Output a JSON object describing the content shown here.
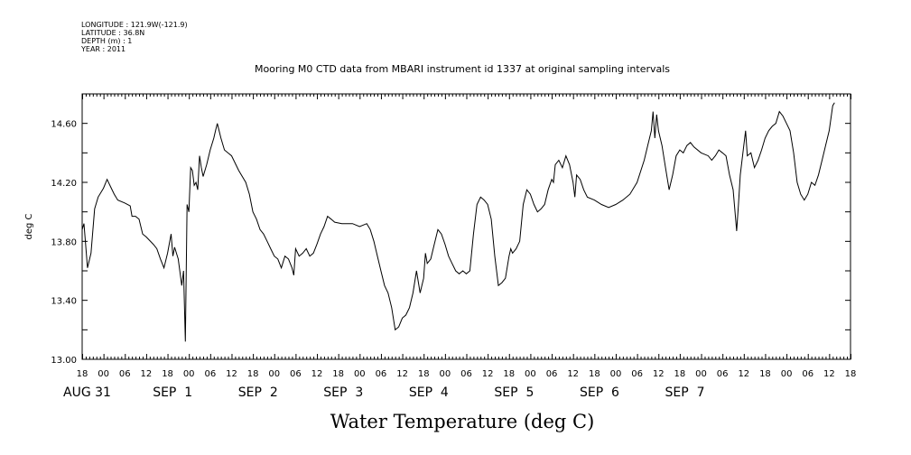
{
  "metadata": {
    "longitude": "LONGITUDE : 121.9W(-121.9)",
    "latitude": "LATITUDE : 36.8N",
    "depth": "DEPTH (m) : 1",
    "year": "YEAR : 2011"
  },
  "chart_data": {
    "type": "line",
    "title": "Mooring M0 CTD data from MBARI instrument id 1337 at original sampling intervals",
    "xlabel": "Water Temperature (deg C)",
    "ylabel": "deg C",
    "ylim": [
      13.0,
      14.8
    ],
    "yticks": [
      "13.00",
      "13.40",
      "13.80",
      "14.20",
      "14.60"
    ],
    "xlim_hours": [
      -6,
      210
    ],
    "xtick_labels": [
      "18",
      "00",
      "06",
      "12",
      "18",
      "00",
      "06",
      "12",
      "18",
      "00",
      "06",
      "12",
      "18",
      "00",
      "06",
      "12",
      "18",
      "00",
      "06",
      "12",
      "18",
      "00",
      "06",
      "12",
      "18",
      "00",
      "06",
      "12",
      "18",
      "00",
      "06",
      "12",
      "18",
      "00",
      "06",
      "12",
      "18"
    ],
    "day_labels": [
      "AUG 31",
      "SEP  1",
      "SEP  2",
      "SEP  3",
      "SEP  4",
      "SEP  5",
      "SEP  6",
      "SEP  7"
    ],
    "grid": false,
    "series": [
      {
        "values": [
          [
            -6,
            13.88
          ],
          [
            -5.5,
            13.92
          ],
          [
            -4.5,
            13.62
          ],
          [
            -3.5,
            13.72
          ],
          [
            -2.5,
            14.02
          ],
          [
            -1.5,
            14.1
          ],
          [
            0,
            14.16
          ],
          [
            1,
            14.22
          ],
          [
            2,
            14.17
          ],
          [
            3,
            14.12
          ],
          [
            4,
            14.08
          ],
          [
            6,
            14.06
          ],
          [
            7.5,
            14.04
          ],
          [
            8,
            13.97
          ],
          [
            9,
            13.97
          ],
          [
            10,
            13.95
          ],
          [
            11,
            13.85
          ],
          [
            12,
            13.83
          ],
          [
            14,
            13.78
          ],
          [
            15,
            13.75
          ],
          [
            16,
            13.68
          ],
          [
            17,
            13.62
          ],
          [
            18,
            13.72
          ],
          [
            19,
            13.85
          ],
          [
            19.5,
            13.7
          ],
          [
            20,
            13.76
          ],
          [
            21,
            13.68
          ],
          [
            22,
            13.5
          ],
          [
            22.5,
            13.6
          ],
          [
            23,
            13.12
          ],
          [
            23.5,
            14.05
          ],
          [
            24,
            14.0
          ],
          [
            24.5,
            14.3
          ],
          [
            25,
            14.28
          ],
          [
            25.5,
            14.18
          ],
          [
            26,
            14.2
          ],
          [
            26.5,
            14.15
          ],
          [
            27,
            14.38
          ],
          [
            27.5,
            14.3
          ],
          [
            28,
            14.24
          ],
          [
            29,
            14.32
          ],
          [
            30,
            14.42
          ],
          [
            31,
            14.5
          ],
          [
            31.5,
            14.55
          ],
          [
            32,
            14.6
          ],
          [
            33,
            14.5
          ],
          [
            34,
            14.42
          ],
          [
            36,
            14.38
          ],
          [
            38,
            14.28
          ],
          [
            40,
            14.2
          ],
          [
            41,
            14.12
          ],
          [
            42,
            14.0
          ],
          [
            43,
            13.95
          ],
          [
            44,
            13.88
          ],
          [
            45,
            13.85
          ],
          [
            46,
            13.8
          ],
          [
            47,
            13.75
          ],
          [
            48,
            13.7
          ],
          [
            49,
            13.68
          ],
          [
            50,
            13.62
          ],
          [
            51,
            13.7
          ],
          [
            52,
            13.68
          ],
          [
            53,
            13.62
          ],
          [
            53.5,
            13.57
          ],
          [
            54,
            13.75
          ],
          [
            55,
            13.7
          ],
          [
            56,
            13.72
          ],
          [
            57,
            13.75
          ],
          [
            58,
            13.7
          ],
          [
            59,
            13.72
          ],
          [
            60,
            13.78
          ],
          [
            61,
            13.85
          ],
          [
            62,
            13.9
          ],
          [
            63,
            13.97
          ],
          [
            64,
            13.95
          ],
          [
            65,
            13.93
          ],
          [
            67,
            13.92
          ],
          [
            70,
            13.92
          ],
          [
            72,
            13.9
          ],
          [
            74,
            13.92
          ],
          [
            75,
            13.88
          ],
          [
            76,
            13.8
          ],
          [
            77,
            13.7
          ],
          [
            78,
            13.6
          ],
          [
            79,
            13.5
          ],
          [
            80,
            13.45
          ],
          [
            81,
            13.35
          ],
          [
            82,
            13.2
          ],
          [
            83,
            13.22
          ],
          [
            84,
            13.28
          ],
          [
            85,
            13.3
          ],
          [
            86,
            13.35
          ],
          [
            87,
            13.45
          ],
          [
            88,
            13.6
          ],
          [
            89,
            13.45
          ],
          [
            90,
            13.55
          ],
          [
            90.5,
            13.72
          ],
          [
            91,
            13.65
          ],
          [
            92,
            13.68
          ],
          [
            93,
            13.78
          ],
          [
            94,
            13.88
          ],
          [
            95,
            13.85
          ],
          [
            96,
            13.78
          ],
          [
            97,
            13.7
          ],
          [
            98,
            13.65
          ],
          [
            99,
            13.6
          ],
          [
            100,
            13.58
          ],
          [
            101,
            13.6
          ],
          [
            102,
            13.58
          ],
          [
            103,
            13.6
          ],
          [
            104,
            13.85
          ],
          [
            105,
            14.05
          ],
          [
            106,
            14.1
          ],
          [
            107,
            14.08
          ],
          [
            108,
            14.05
          ],
          [
            109,
            13.95
          ],
          [
            110,
            13.7
          ],
          [
            111,
            13.5
          ],
          [
            112,
            13.52
          ],
          [
            113,
            13.55
          ],
          [
            114,
            13.7
          ],
          [
            114.5,
            13.75
          ],
          [
            115,
            13.72
          ],
          [
            116,
            13.75
          ],
          [
            117,
            13.8
          ],
          [
            118,
            14.05
          ],
          [
            119,
            14.15
          ],
          [
            120,
            14.12
          ],
          [
            121,
            14.05
          ],
          [
            122,
            14.0
          ],
          [
            123,
            14.02
          ],
          [
            124,
            14.05
          ],
          [
            125,
            14.15
          ],
          [
            126,
            14.22
          ],
          [
            126.5,
            14.2
          ],
          [
            127,
            14.32
          ],
          [
            128,
            14.35
          ],
          [
            129,
            14.3
          ],
          [
            130,
            14.38
          ],
          [
            131,
            14.32
          ],
          [
            132,
            14.2
          ],
          [
            132.5,
            14.1
          ],
          [
            133,
            14.25
          ],
          [
            134,
            14.22
          ],
          [
            135,
            14.15
          ],
          [
            136,
            14.1
          ],
          [
            138,
            14.08
          ],
          [
            140,
            14.05
          ],
          [
            142,
            14.03
          ],
          [
            144,
            14.05
          ],
          [
            146,
            14.08
          ],
          [
            148,
            14.12
          ],
          [
            150,
            14.2
          ],
          [
            152,
            14.35
          ],
          [
            153,
            14.45
          ],
          [
            154,
            14.55
          ],
          [
            154.5,
            14.68
          ],
          [
            155,
            14.5
          ],
          [
            155.5,
            14.66
          ],
          [
            156,
            14.55
          ],
          [
            157,
            14.45
          ],
          [
            158,
            14.3
          ],
          [
            159,
            14.15
          ],
          [
            160,
            14.25
          ],
          [
            161,
            14.38
          ],
          [
            162,
            14.42
          ],
          [
            163,
            14.4
          ],
          [
            164,
            14.45
          ],
          [
            165,
            14.47
          ],
          [
            166,
            14.44
          ],
          [
            168,
            14.4
          ],
          [
            170,
            14.38
          ],
          [
            171,
            14.35
          ],
          [
            172,
            14.38
          ],
          [
            173,
            14.42
          ],
          [
            174,
            14.4
          ],
          [
            175,
            14.38
          ],
          [
            176,
            14.25
          ],
          [
            177,
            14.15
          ],
          [
            178,
            13.87
          ],
          [
            178.5,
            14.05
          ],
          [
            179,
            14.25
          ],
          [
            180,
            14.45
          ],
          [
            180.5,
            14.55
          ],
          [
            181,
            14.38
          ],
          [
            182,
            14.4
          ],
          [
            183,
            14.3
          ],
          [
            184,
            14.35
          ],
          [
            185,
            14.42
          ],
          [
            186,
            14.5
          ],
          [
            187,
            14.55
          ],
          [
            188,
            14.58
          ],
          [
            189,
            14.6
          ],
          [
            190,
            14.68
          ],
          [
            191,
            14.65
          ],
          [
            192,
            14.6
          ],
          [
            193,
            14.55
          ],
          [
            194,
            14.4
          ],
          [
            195,
            14.2
          ],
          [
            196,
            14.12
          ],
          [
            197,
            14.08
          ],
          [
            198,
            14.12
          ],
          [
            199,
            14.2
          ],
          [
            200,
            14.18
          ],
          [
            201,
            14.25
          ],
          [
            202,
            14.35
          ],
          [
            203,
            14.45
          ],
          [
            204,
            14.55
          ],
          [
            205,
            14.72
          ],
          [
            205.5,
            14.74
          ]
        ]
      }
    ]
  }
}
